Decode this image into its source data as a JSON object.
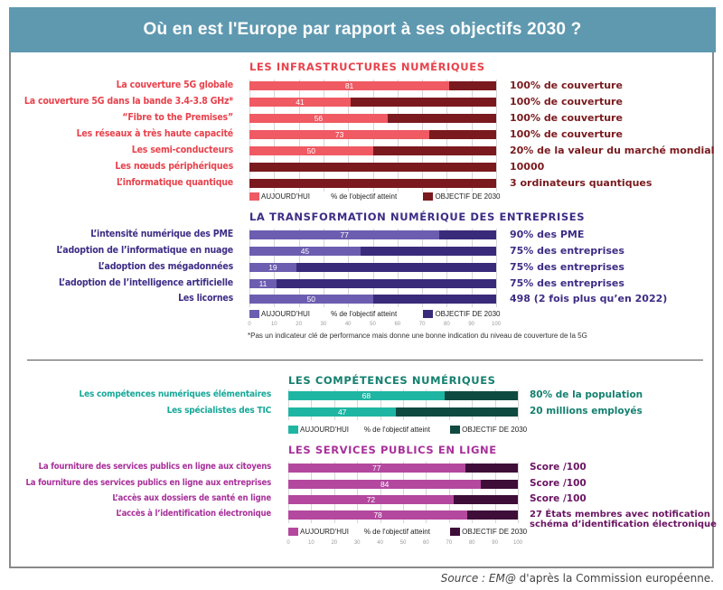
{
  "header": {
    "title": "Où en est l'Europe par rapport à ses objectifs 2030 ?"
  },
  "source": {
    "italic": "Source : EM@",
    "rest": " d'après la Commission européenne."
  },
  "chart_data": [
    {
      "type": "bar",
      "orientation": "horizontal",
      "stacked_to_100": true,
      "title": "LES INFRASTRUCTURES NUMÉRIQUES",
      "colors": {
        "today": "#ef5a63",
        "target": "#7a1a1e",
        "label": "#e8424c",
        "target_text": "#7a1a1e",
        "title": "#e8424c"
      },
      "categories": [
        "La couverture 5G globale",
        "La couverture 5G dans la bande 3.4-3.8 GHz*",
        "“Fibre to the Premises”",
        "Les réseaux à très haute capacité",
        "Les semi-conducteurs",
        "Les nœuds périphériques",
        "L’informatique quantique"
      ],
      "values": [
        81,
        41,
        56,
        73,
        50,
        0,
        0
      ],
      "value_labels": [
        "81",
        "41",
        "56",
        "73",
        "50",
        "",
        ""
      ],
      "targets": [
        "100% de couverture",
        "100% de couverture",
        "100% de couverture",
        "100% de couverture",
        "20% de la valeur du marché mondial",
        "10000",
        "3 ordinateurs quantiques"
      ],
      "legend": {
        "today": "AUJOURD'HUI",
        "middle": "% de l'objectif atteint",
        "target": "OBJECTIF DE 2030"
      },
      "xlim": [
        0,
        100
      ]
    },
    {
      "type": "bar",
      "orientation": "horizontal",
      "stacked_to_100": true,
      "title": "LA TRANSFORMATION NUMÉRIQUE DES ENTREPRISES",
      "colors": {
        "today": "#6d5db0",
        "target": "#3a2a7a",
        "label": "#3d2c85",
        "target_text": "#3d2c85",
        "title": "#3d2c85"
      },
      "categories": [
        "L’intensité numérique des PME",
        "L’adoption de l’informatique en nuage",
        "L’adoption des mégadonnées",
        "L’adoption de l’intelligence artificielle",
        "Les licornes"
      ],
      "values": [
        77,
        45,
        19,
        11,
        50
      ],
      "value_labels": [
        "77",
        "45",
        "19",
        "11",
        "50"
      ],
      "targets": [
        "90% des PME",
        "75% des entreprises",
        "75% des entreprises",
        "75% des entreprises",
        "498 (2 fois plus qu’en 2022)"
      ],
      "legend": {
        "today": "AUJOURD'HUI",
        "middle": "% de l'objectif atteint",
        "target": "OBJECTIF DE 2030"
      },
      "xticks": [
        "0",
        "10",
        "20",
        "30",
        "40",
        "50",
        "60",
        "70",
        "80",
        "90",
        "100"
      ],
      "footnote": "*Pas un indicateur clé de performance mais donne une bonne indication du niveau de couverture de la 5G",
      "xlim": [
        0,
        100
      ]
    },
    {
      "type": "bar",
      "orientation": "horizontal",
      "stacked_to_100": true,
      "title": "LES COMPÉTENCES NUMÉRIQUES",
      "colors": {
        "today": "#1fb5a3",
        "target": "#0f4a40",
        "label": "#17a898",
        "target_text": "#14806f",
        "title": "#14806f"
      },
      "categories": [
        "Les compétences numériques élémentaires",
        "Les spécialistes des TIC"
      ],
      "values": [
        68,
        47
      ],
      "value_labels": [
        "68",
        "47"
      ],
      "targets": [
        "80% de la population",
        "20 millions employés"
      ],
      "legend": {
        "today": "AUJOURD'HUI",
        "middle": "% de l'objectif atteint",
        "target": "OBJECTIF DE 2030"
      },
      "xlim": [
        0,
        100
      ]
    },
    {
      "type": "bar",
      "orientation": "horizontal",
      "stacked_to_100": true,
      "title": "LES SERVICES PUBLICS EN LIGNE",
      "colors": {
        "today": "#b3489e",
        "target": "#3e0d38",
        "label": "#a8309a",
        "target_text": "#6a1462",
        "title": "#a8309a"
      },
      "categories": [
        "La fourniture des services publics en ligne aux citoyens",
        "La fourniture des services publics en ligne aux entreprises",
        "L’accès aux dossiers de santé en ligne",
        "L’accès à l’identification électronique"
      ],
      "values": [
        77,
        84,
        72,
        78
      ],
      "value_labels": [
        "77",
        "84",
        "72",
        "78"
      ],
      "targets": [
        "Score /100",
        "Score /100",
        "Score /100",
        "27 États membres avec notification\nschéma d’identification électronique"
      ],
      "legend": {
        "today": "AUJOURD'HUI",
        "middle": "% de l'objectif atteint",
        "target": "OBJECTIF DE 2030"
      },
      "xticks": [
        "0",
        "10",
        "20",
        "30",
        "40",
        "50",
        "60",
        "70",
        "80",
        "90",
        "100"
      ],
      "xlim": [
        0,
        100
      ]
    }
  ]
}
